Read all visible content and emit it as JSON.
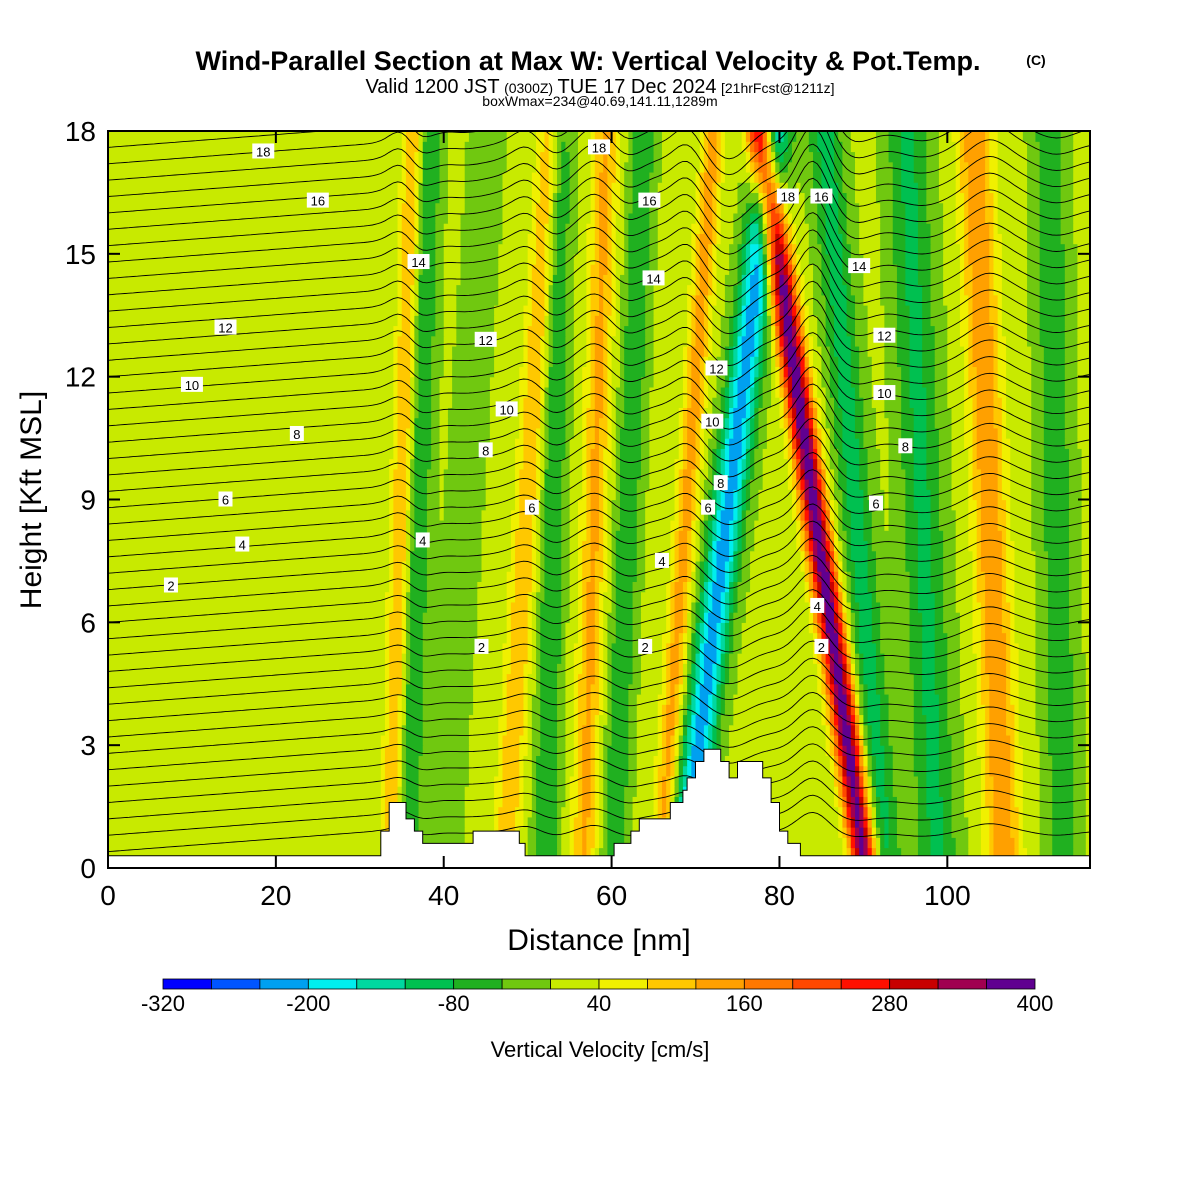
{
  "header": {
    "title_main": "Wind-Parallel Section at Max W: Vertical Velocity & Pot.Temp.",
    "title_copyright": "(C)",
    "sub_valid": "Valid 1200 JST",
    "sub_utc": "(0300Z)",
    "sub_date": "TUE 17 Dec 2024",
    "sub_fcst": "[21hrFcst@1211z]",
    "sub_box": "boxWmax=234@40.69,141.11,1289m"
  },
  "colors": {
    "terrain": "#ffffff",
    "contour": "#000000",
    "frame": "#000000"
  },
  "chart_data": {
    "type": "heatmap",
    "title": "Wind-Parallel Section at Max W: Vertical Velocity & Pot.Temp.",
    "xlabel": "Distance [nm]",
    "ylabel": "Height [Kft MSL]",
    "xlim": [
      0,
      117
    ],
    "ylim": [
      0,
      18
    ],
    "xticks": [
      0,
      20,
      40,
      60,
      80,
      100
    ],
    "yticks": [
      0,
      3,
      6,
      9,
      12,
      15,
      18
    ],
    "grid": false,
    "shaded_field": "Vertical Velocity [cm/s]",
    "contour_field": "Potential Temperature",
    "colorbar": {
      "label": "Vertical Velocity [cm/s]",
      "levels": [
        -320,
        -280,
        -240,
        -200,
        -160,
        -120,
        -80,
        -40,
        0,
        40,
        80,
        120,
        160,
        200,
        240,
        280,
        320,
        360,
        400
      ],
      "tick_labels": [
        "-320",
        "-200",
        "-80",
        "40",
        "160",
        "280",
        "400"
      ],
      "tick_values": [
        -320,
        -200,
        -80,
        40,
        160,
        280,
        400
      ],
      "colors": [
        "#0000ff",
        "#0055ff",
        "#00a0f0",
        "#00eeee",
        "#00d8a0",
        "#00c050",
        "#20b020",
        "#70c810",
        "#c8ea00",
        "#f0f000",
        "#ffc800",
        "#ffa000",
        "#ff7800",
        "#ff4800",
        "#ff1000",
        "#c80000",
        "#a00050",
        "#600090"
      ]
    },
    "w_background": 10,
    "w_bands": [
      {
        "x": 35,
        "w": 120,
        "width": 1.2,
        "slope": 0.15
      },
      {
        "x": 37,
        "w": -90,
        "width": 1.5,
        "slope": 0.15
      },
      {
        "x": 42.5,
        "w": -40,
        "width": 2.0,
        "slope": 0.3
      },
      {
        "x": 50,
        "w": 110,
        "width": 1.5,
        "slope": 0.3
      },
      {
        "x": 53,
        "w": -90,
        "width": 1.5,
        "slope": 0.1
      },
      {
        "x": 58,
        "w": 120,
        "width": 1.5,
        "slope": 0.15
      },
      {
        "x": 62,
        "w": -90,
        "width": 1.5,
        "slope": 0.2
      },
      {
        "x": 69,
        "w": 130,
        "width": 1.3,
        "slope": 0.35
      },
      {
        "x": 74,
        "w": -230,
        "width": 2.0,
        "slope": 0.6
      },
      {
        "x": 84,
        "w": 380,
        "width": 1.6,
        "slope": -0.7
      },
      {
        "x": 89,
        "w": -110,
        "width": 2.0,
        "slope": -0.4
      },
      {
        "x": 97,
        "w": -100,
        "width": 2.5,
        "slope": -0.2
      },
      {
        "x": 105,
        "w": 150,
        "width": 2.0,
        "slope": -0.2
      },
      {
        "x": 113,
        "w": -80,
        "width": 2.0,
        "slope": -0.1
      }
    ],
    "terrain": [
      [
        0,
        0.3
      ],
      [
        32.5,
        0.3
      ],
      [
        32.5,
        0.9
      ],
      [
        33.5,
        0.9
      ],
      [
        33.5,
        1.6
      ],
      [
        35.5,
        1.6
      ],
      [
        35.5,
        1.2
      ],
      [
        36.5,
        1.2
      ],
      [
        36.5,
        0.9
      ],
      [
        37.5,
        0.9
      ],
      [
        37.5,
        0.6
      ],
      [
        43.5,
        0.6
      ],
      [
        43.5,
        0.9
      ],
      [
        49,
        0.9
      ],
      [
        49,
        0.6
      ],
      [
        49.7,
        0.6
      ],
      [
        49.7,
        0.3
      ],
      [
        60.3,
        0.3
      ],
      [
        60.3,
        0.6
      ],
      [
        62.3,
        0.6
      ],
      [
        62.3,
        0.9
      ],
      [
        63.3,
        0.9
      ],
      [
        63.3,
        1.2
      ],
      [
        67,
        1.2
      ],
      [
        67,
        1.6
      ],
      [
        68.5,
        1.6
      ],
      [
        68.5,
        1.9
      ],
      [
        69,
        1.9
      ],
      [
        69,
        2.2
      ],
      [
        70,
        2.2
      ],
      [
        70,
        2.6
      ],
      [
        71,
        2.6
      ],
      [
        71,
        2.9
      ],
      [
        73,
        2.9
      ],
      [
        73,
        2.6
      ],
      [
        74,
        2.6
      ],
      [
        74,
        2.2
      ],
      [
        75,
        2.2
      ],
      [
        75,
        2.6
      ],
      [
        78,
        2.6
      ],
      [
        78,
        2.2
      ],
      [
        79,
        2.2
      ],
      [
        79,
        1.6
      ],
      [
        80,
        1.6
      ],
      [
        80,
        0.9
      ],
      [
        81,
        0.9
      ],
      [
        81,
        0.6
      ],
      [
        82.5,
        0.6
      ],
      [
        82.5,
        0.3
      ],
      [
        117,
        0.3
      ],
      [
        117,
        0
      ],
      [
        0,
        0
      ]
    ],
    "contour_labels": [
      {
        "text": "18",
        "x": 18.5,
        "y": 17.5
      },
      {
        "text": "16",
        "x": 25,
        "y": 16.3
      },
      {
        "text": "14",
        "x": 37,
        "y": 14.8
      },
      {
        "text": "12",
        "x": 14,
        "y": 13.2
      },
      {
        "text": "12",
        "x": 45,
        "y": 12.9
      },
      {
        "text": "10",
        "x": 10,
        "y": 11.8
      },
      {
        "text": "10",
        "x": 47.5,
        "y": 11.2
      },
      {
        "text": "8",
        "x": 22.5,
        "y": 10.6
      },
      {
        "text": "8",
        "x": 45,
        "y": 10.2
      },
      {
        "text": "6",
        "x": 14,
        "y": 9
      },
      {
        "text": "6",
        "x": 50.5,
        "y": 8.8
      },
      {
        "text": "4",
        "x": 16,
        "y": 7.9
      },
      {
        "text": "4",
        "x": 37.5,
        "y": 8
      },
      {
        "text": "2",
        "x": 7.5,
        "y": 6.9
      },
      {
        "text": "2",
        "x": 44.5,
        "y": 5.4
      },
      {
        "text": "18",
        "x": 58.5,
        "y": 17.6
      },
      {
        "text": "16",
        "x": 64.5,
        "y": 16.3
      },
      {
        "text": "14",
        "x": 65,
        "y": 14.4
      },
      {
        "text": "12",
        "x": 72.5,
        "y": 12.2
      },
      {
        "text": "10",
        "x": 72,
        "y": 10.9
      },
      {
        "text": "8",
        "x": 73,
        "y": 9.4
      },
      {
        "text": "6",
        "x": 71.5,
        "y": 8.8
      },
      {
        "text": "4",
        "x": 66,
        "y": 7.5
      },
      {
        "text": "2",
        "x": 64,
        "y": 5.4
      },
      {
        "text": "18",
        "x": 81,
        "y": 16.4
      },
      {
        "text": "16",
        "x": 85,
        "y": 16.4
      },
      {
        "text": "14",
        "x": 89.5,
        "y": 14.7
      },
      {
        "text": "12",
        "x": 92.5,
        "y": 13
      },
      {
        "text": "10",
        "x": 92.5,
        "y": 11.6
      },
      {
        "text": "8",
        "x": 95,
        "y": 10.3
      },
      {
        "text": "6",
        "x": 91.5,
        "y": 8.9
      },
      {
        "text": "4",
        "x": 84.5,
        "y": 6.4
      },
      {
        "text": "2",
        "x": 85,
        "y": 5.4
      }
    ]
  }
}
